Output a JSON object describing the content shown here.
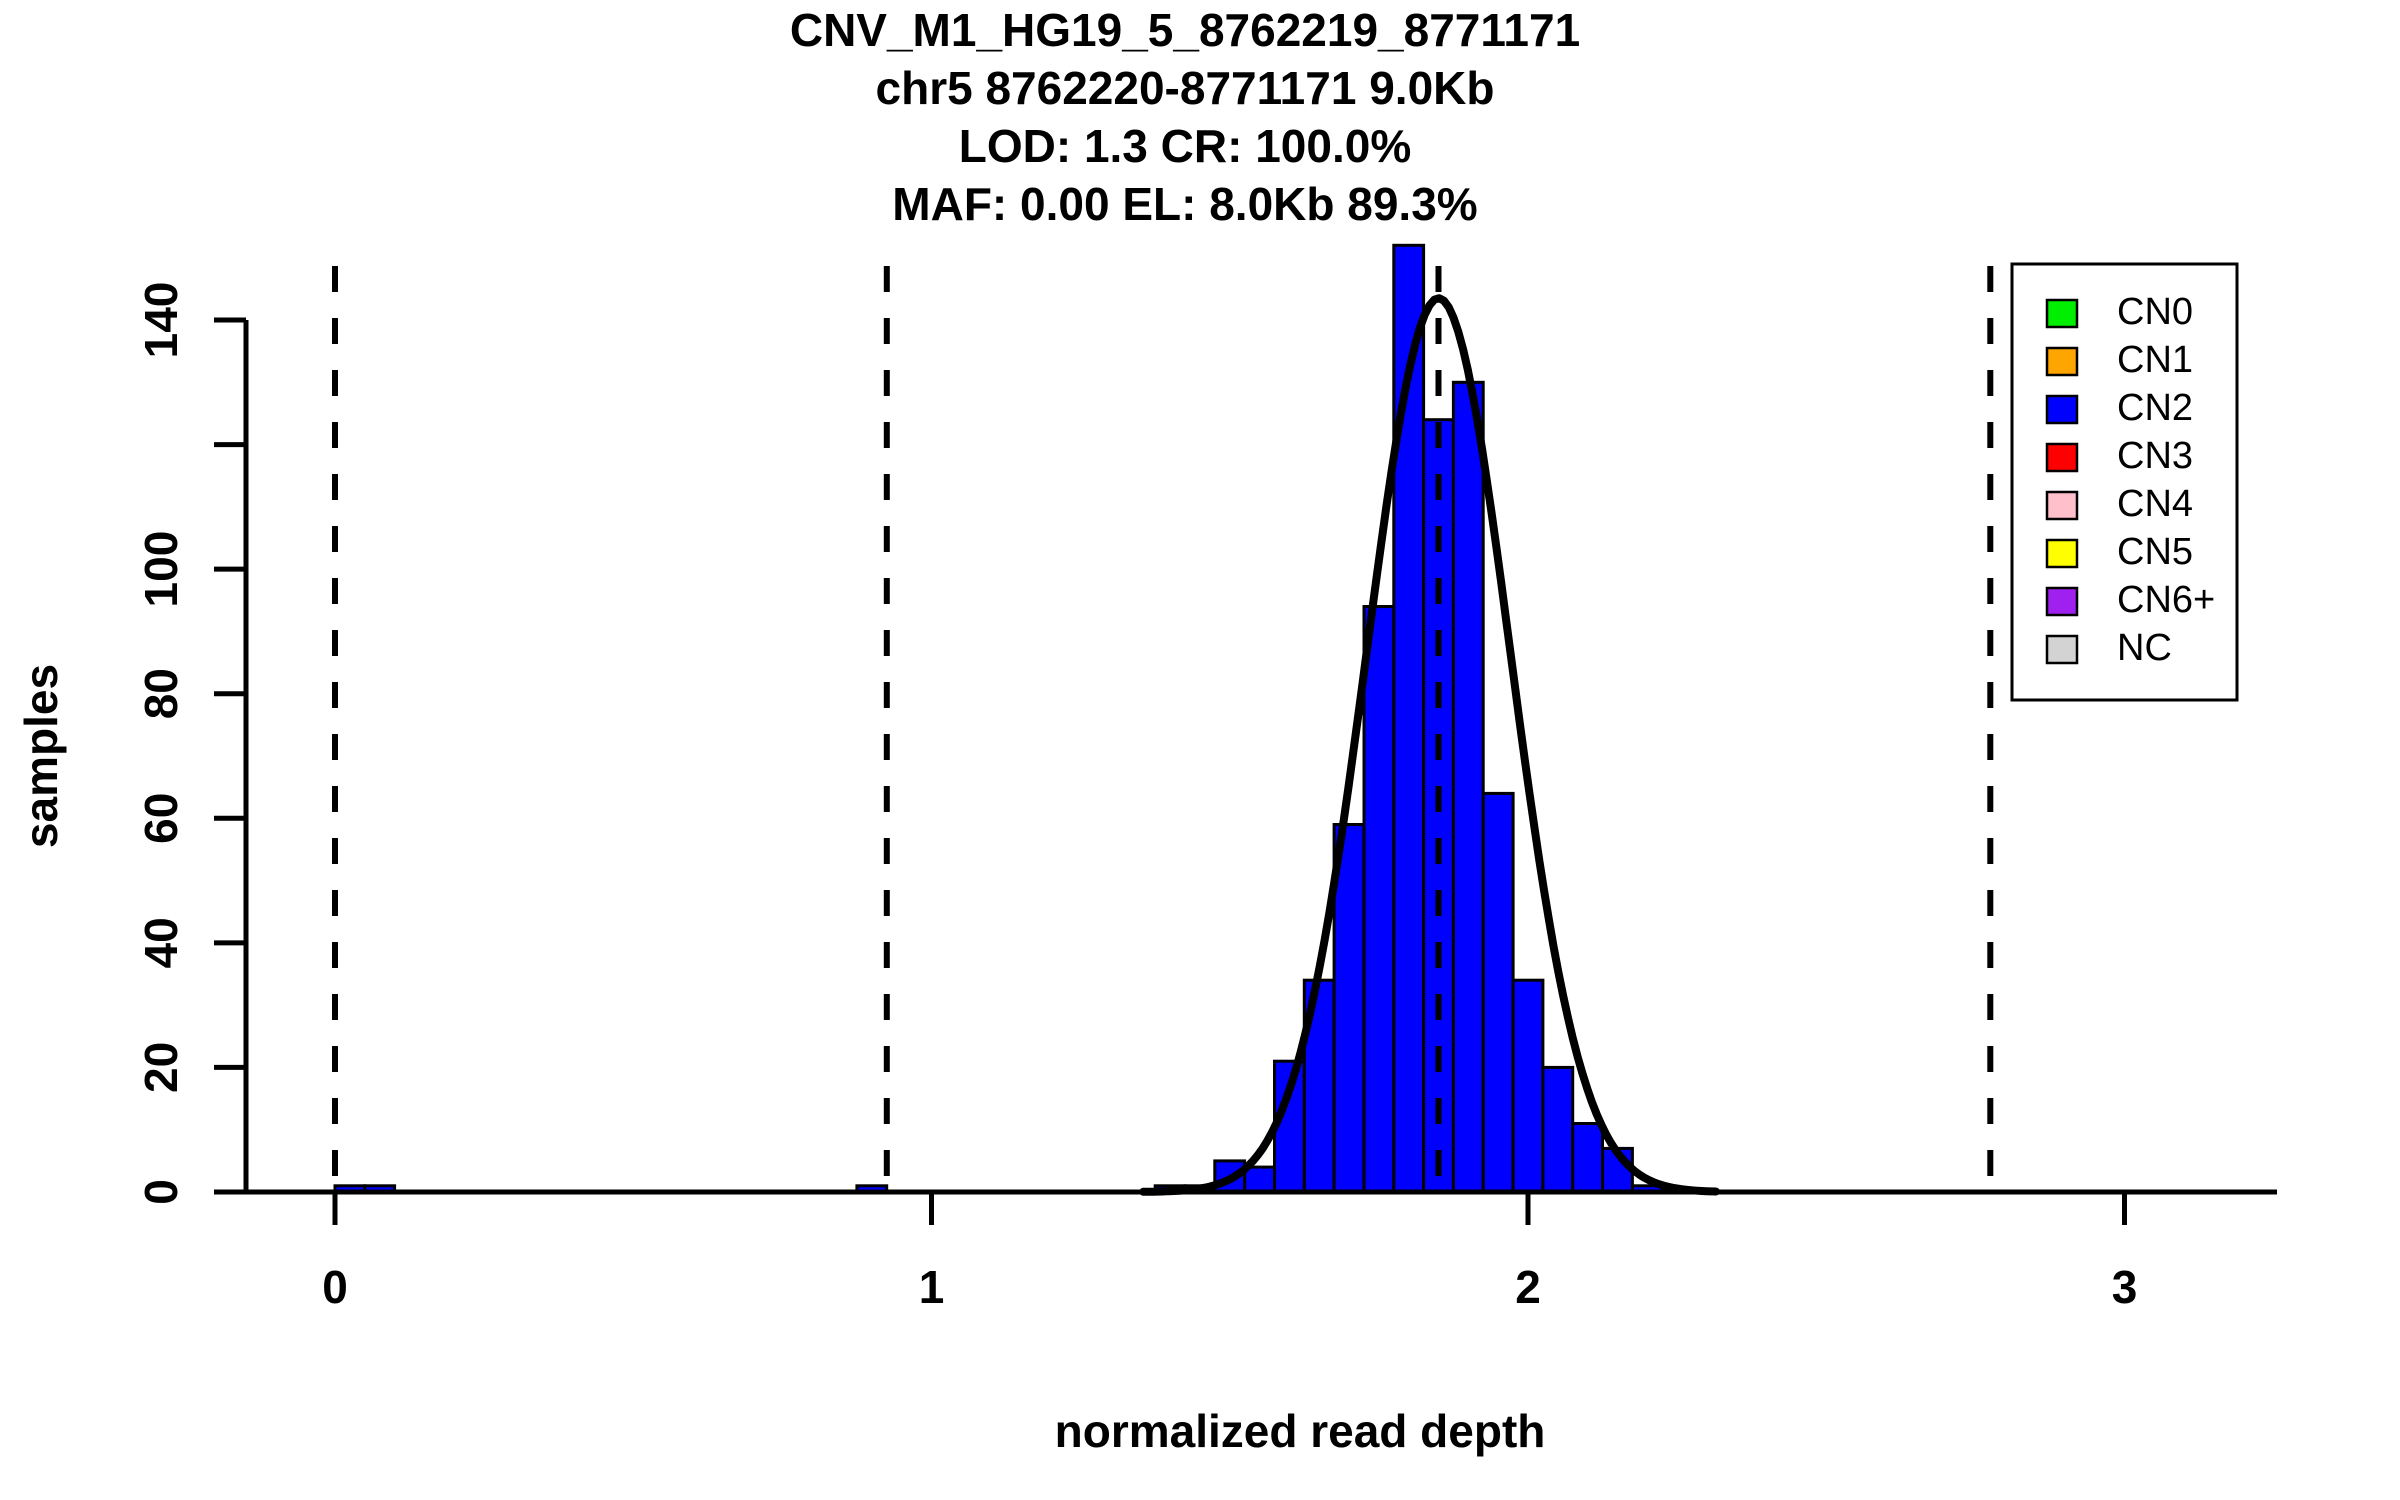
{
  "chart_data": {
    "type": "bar",
    "subtype": "histogram-with-gaussian-fit",
    "title_lines": [
      "CNV_M1_HG19_5_8762219_8771171",
      "chr5 8762220-8771171 9.0Kb",
      "LOD: 1.3 CR: 100.0%",
      "MAF: 0.00 EL: 8.0Kb 89.3%"
    ],
    "stats": {
      "locus": "CNV_M1_HG19_5_8762219_8771171",
      "region": "chr5 8762220-8771171",
      "region_size": "9.0Kb",
      "LOD": "1.3",
      "CR": "100.0%",
      "MAF": "0.00",
      "EL": "8.0Kb",
      "EL_pct": "89.3%"
    },
    "xlabel": "normalized read depth",
    "ylabel": "samples",
    "xlim": [
      -0.2,
      3.26
    ],
    "ylim": [
      0,
      152
    ],
    "x_ticks": [
      0,
      1,
      2,
      3
    ],
    "y_ticks": [
      0,
      20,
      40,
      60,
      80,
      100,
      120,
      140
    ],
    "y_tick_labels": [
      "0",
      "20",
      "40",
      "60",
      "80",
      "100",
      "",
      "140"
    ],
    "grid": false,
    "bin_width": 0.05,
    "bins": [
      {
        "x": 0.0,
        "n": 1
      },
      {
        "x": 0.05,
        "n": 1
      },
      {
        "x": 0.875,
        "n": 1
      },
      {
        "x": 1.375,
        "n": 1
      },
      {
        "x": 1.425,
        "n": 1
      },
      {
        "x": 1.475,
        "n": 5
      },
      {
        "x": 1.525,
        "n": 4
      },
      {
        "x": 1.575,
        "n": 21
      },
      {
        "x": 1.625,
        "n": 34
      },
      {
        "x": 1.675,
        "n": 59
      },
      {
        "x": 1.725,
        "n": 94
      },
      {
        "x": 1.775,
        "n": 152
      },
      {
        "x": 1.825,
        "n": 124
      },
      {
        "x": 1.875,
        "n": 130
      },
      {
        "x": 1.925,
        "n": 64
      },
      {
        "x": 1.975,
        "n": 34
      },
      {
        "x": 2.025,
        "n": 20
      },
      {
        "x": 2.075,
        "n": 11
      },
      {
        "x": 2.125,
        "n": 7
      },
      {
        "x": 2.175,
        "n": 1
      }
    ],
    "fit_curve": {
      "type": "gaussian",
      "mean": 1.85,
      "sigma": 0.12,
      "peak": 143.5,
      "x_start": 1.355,
      "x_end": 2.315
    },
    "dashed_lines_x": [
      0,
      0.925,
      1.85,
      2.775
    ],
    "colors": {
      "bar_fill": "#0000FF",
      "bar_border": "#000000",
      "curve": "#000000",
      "dashed_line": "#000000",
      "axis": "#000000",
      "background": "#FFFFFF"
    },
    "legend": {
      "position": "top-right",
      "items": [
        {
          "label": "CN0",
          "color": "#00EE00"
        },
        {
          "label": "CN1",
          "color": "#FFA500"
        },
        {
          "label": "CN2",
          "color": "#0000FF"
        },
        {
          "label": "CN3",
          "color": "#FF0000"
        },
        {
          "label": "CN4",
          "color": "#FFC0CB"
        },
        {
          "label": "CN5",
          "color": "#FFFF00"
        },
        {
          "label": "CN6+",
          "color": "#A020F0"
        },
        {
          "label": "NC",
          "color": "#D3D3D3"
        }
      ]
    }
  }
}
